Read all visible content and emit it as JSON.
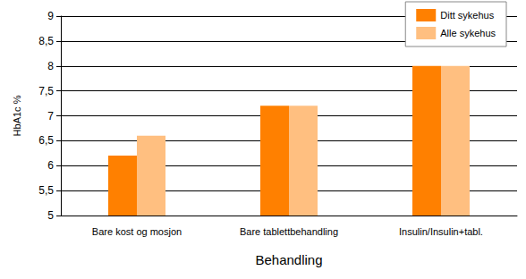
{
  "chart_data": {
    "type": "bar",
    "x_label": "Behandling",
    "y_label": "HbA1c %",
    "categories": [
      "Bare kost og mosjon",
      "Bare tablettbehandling",
      "Insulin/Insulin+tabl."
    ],
    "series": [
      {
        "name": "Ditt sykehus",
        "color": "#ff8000",
        "values": [
          6.2,
          7.2,
          8.0
        ]
      },
      {
        "name": "Alle sykehus",
        "color": "#ffbf80",
        "values": [
          6.6,
          7.2,
          8.0
        ]
      }
    ],
    "ylim": [
      5,
      9
    ],
    "yticks": [
      5,
      {
        "value": 5.5,
        "label": "5,5"
      },
      6,
      {
        "value": 6.5,
        "label": "6,5"
      },
      7,
      {
        "value": 7.5,
        "label": "7,5"
      },
      8,
      {
        "value": 8.5,
        "label": "8,5"
      },
      9
    ],
    "grid": true,
    "legend": "top-right"
  }
}
